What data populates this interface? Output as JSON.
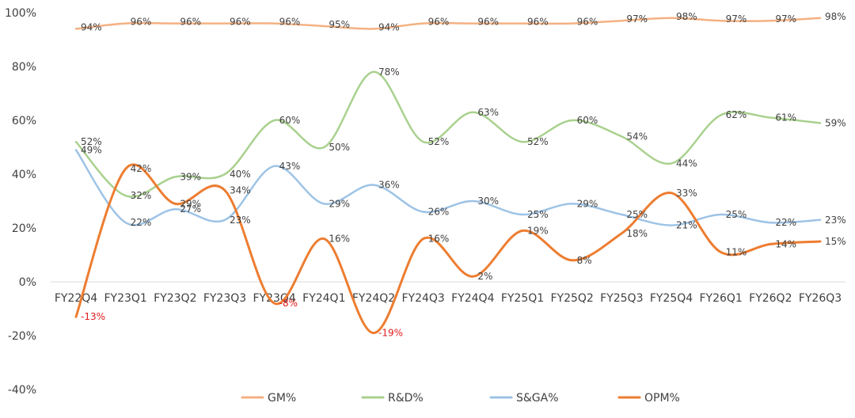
{
  "chart_data": {
    "type": "line",
    "title": "",
    "xlabel": "",
    "ylabel": "",
    "ylim": [
      -40,
      100
    ],
    "yticks": [
      100,
      80,
      60,
      40,
      20,
      0,
      -20,
      -40
    ],
    "ytick_labels": [
      "100%",
      "80%",
      "60%",
      "40%",
      "20%",
      "0%",
      "-20%",
      "-40%"
    ],
    "grid": false,
    "legend_position": "bottom",
    "categories": [
      "FY22Q4",
      "FY23Q1",
      "FY23Q2",
      "FY23Q3",
      "FY23Q4",
      "FY24Q1",
      "FY24Q2",
      "FY24Q3",
      "FY24Q4",
      "FY25Q1",
      "FY25Q2",
      "FY25Q3",
      "FY25Q4",
      "FY26Q1",
      "FY26Q2",
      "FY26Q3"
    ],
    "series": [
      {
        "name": "GM%",
        "color": "#f4b183",
        "values": [
          94,
          96,
          96,
          96,
          96,
          95,
          94,
          96,
          96,
          96,
          96,
          97,
          98,
          97,
          97,
          98
        ],
        "labels": [
          "94%",
          "96%",
          "96%",
          "96%",
          "96%",
          "95%",
          "94%",
          "96%",
          "96%",
          "96%",
          "96%",
          "97%",
          "98%",
          "97%",
          "97%",
          "98%"
        ]
      },
      {
        "name": "R&D%",
        "color": "#a9d18e",
        "values": [
          52,
          32,
          39,
          40,
          60,
          50,
          78,
          52,
          63,
          52,
          60,
          54,
          44,
          62,
          61,
          59
        ],
        "labels": [
          "52%",
          "32%",
          "39%",
          "40%",
          "60%",
          "50%",
          "78%",
          "52%",
          "63%",
          "52%",
          "60%",
          "54%",
          "44%",
          "62%",
          "61%",
          "59%"
        ]
      },
      {
        "name": "S&GA%",
        "color": "#9dc3e6",
        "values": [
          49,
          22,
          27,
          23,
          43,
          29,
          36,
          26,
          30,
          25,
          29,
          25,
          21,
          25,
          22,
          23
        ],
        "labels": [
          "49%",
          "22%",
          "27%",
          "23%",
          "43%",
          "29%",
          "36%",
          "26%",
          "30%",
          "25%",
          "29%",
          "25%",
          "21%",
          "25%",
          "22%",
          "23%"
        ]
      },
      {
        "name": "OPM%",
        "color": "#ed7d31",
        "values": [
          -13,
          42,
          29,
          34,
          -8,
          16,
          -19,
          16,
          2,
          19,
          8,
          18,
          33,
          11,
          14,
          15
        ],
        "labels": [
          "-13%",
          "42%",
          "29%",
          "34%",
          "-8%",
          "16%",
          "-19%",
          "16%",
          "2%",
          "19%",
          "8%",
          "18%",
          "33%",
          "11%",
          "14%",
          "15%"
        ]
      }
    ]
  },
  "colors": {
    "axis": "#d9d9d9",
    "text": "#404040",
    "negative_label": "#e01e1e"
  }
}
